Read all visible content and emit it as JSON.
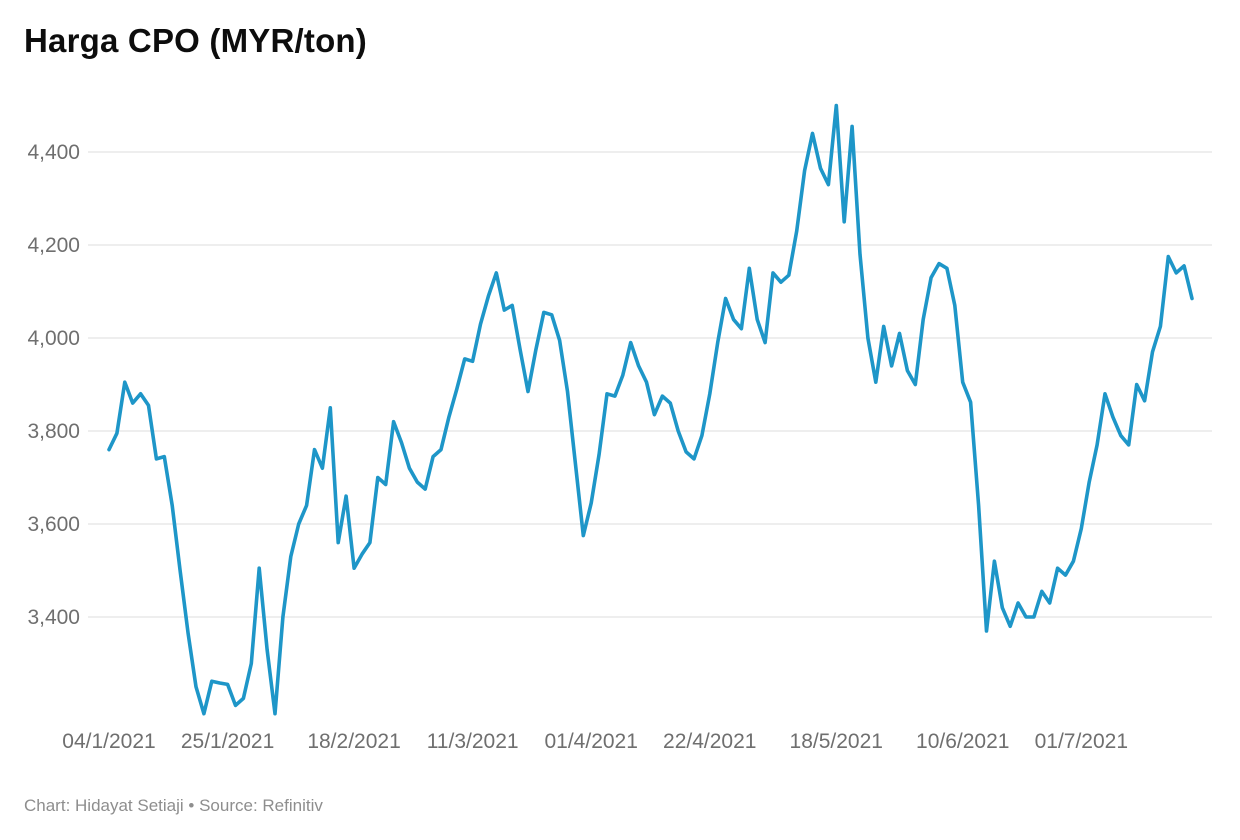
{
  "header": {
    "title": "Harga CPO (MYR/ton)"
  },
  "footer": {
    "text": "Chart: Hidayat Setiaji • Source: Refinitiv"
  },
  "chart_data": {
    "type": "line",
    "title": "Harga CPO (MYR/ton)",
    "xlabel": "",
    "ylabel": "MYR/ton",
    "series_name": "Harga CPO",
    "line_color": "#1e96c8",
    "grid_color": "#dcdcdc",
    "axis_text_color": "#6f6f6f",
    "background_color": "#ffffff",
    "legend": "none",
    "grid": "horizontal-only",
    "ylim": [
      3160,
      4515
    ],
    "y_ticks": [
      {
        "value": 4400,
        "label": "4,400"
      },
      {
        "value": 4200,
        "label": "4,200"
      },
      {
        "value": 4000,
        "label": "4,000"
      },
      {
        "value": 3800,
        "label": "3,800"
      },
      {
        "value": 3600,
        "label": "3,600"
      },
      {
        "value": 3400,
        "label": "3,400"
      }
    ],
    "x_ticks": [
      {
        "index": 0,
        "label": "04/1/2021"
      },
      {
        "index": 15,
        "label": "25/1/2021"
      },
      {
        "index": 31,
        "label": "18/2/2021"
      },
      {
        "index": 46,
        "label": "11/3/2021"
      },
      {
        "index": 61,
        "label": "01/4/2021"
      },
      {
        "index": 76,
        "label": "22/4/2021"
      },
      {
        "index": 92,
        "label": "18/5/2021"
      },
      {
        "index": 108,
        "label": "10/6/2021"
      },
      {
        "index": 123,
        "label": "01/7/2021"
      }
    ],
    "x": [
      "04/1/2021",
      "05/1/2021",
      "06/1/2021",
      "07/1/2021",
      "08/1/2021",
      "11/1/2021",
      "12/1/2021",
      "13/1/2021",
      "14/1/2021",
      "15/1/2021",
      "18/1/2021",
      "19/1/2021",
      "20/1/2021",
      "21/1/2021",
      "22/1/2021",
      "25/1/2021",
      "26/1/2021",
      "27/1/2021",
      "28/1/2021",
      "29/1/2021",
      "01/2/2021",
      "02/2/2021",
      "03/2/2021",
      "04/2/2021",
      "05/2/2021",
      "08/2/2021",
      "09/2/2021",
      "10/2/2021",
      "15/2/2021",
      "16/2/2021",
      "17/2/2021",
      "18/2/2021",
      "19/2/2021",
      "22/2/2021",
      "23/2/2021",
      "24/2/2021",
      "25/2/2021",
      "26/2/2021",
      "01/3/2021",
      "02/3/2021",
      "03/3/2021",
      "04/3/2021",
      "05/3/2021",
      "08/3/2021",
      "09/3/2021",
      "10/3/2021",
      "11/3/2021",
      "12/3/2021",
      "15/3/2021",
      "16/3/2021",
      "17/3/2021",
      "18/3/2021",
      "19/3/2021",
      "22/3/2021",
      "23/3/2021",
      "24/3/2021",
      "25/3/2021",
      "26/3/2021",
      "29/3/2021",
      "30/3/2021",
      "31/3/2021",
      "01/4/2021",
      "02/4/2021",
      "05/4/2021",
      "06/4/2021",
      "07/4/2021",
      "08/4/2021",
      "09/4/2021",
      "12/4/2021",
      "13/4/2021",
      "14/4/2021",
      "15/4/2021",
      "16/4/2021",
      "19/4/2021",
      "20/4/2021",
      "21/4/2021",
      "22/4/2021",
      "23/4/2021",
      "26/4/2021",
      "27/4/2021",
      "28/4/2021",
      "29/4/2021",
      "30/4/2021",
      "03/5/2021",
      "04/5/2021",
      "05/5/2021",
      "06/5/2021",
      "07/5/2021",
      "10/5/2021",
      "11/5/2021",
      "12/5/2021",
      "17/5/2021",
      "18/5/2021",
      "19/5/2021",
      "20/5/2021",
      "21/5/2021",
      "24/5/2021",
      "25/5/2021",
      "27/5/2021",
      "28/5/2021",
      "31/5/2021",
      "01/6/2021",
      "02/6/2021",
      "03/6/2021",
      "04/6/2021",
      "07/6/2021",
      "08/6/2021",
      "09/6/2021",
      "10/6/2021",
      "11/6/2021",
      "14/6/2021",
      "15/6/2021",
      "16/6/2021",
      "17/6/2021",
      "18/6/2021",
      "21/6/2021",
      "22/6/2021",
      "23/6/2021",
      "24/6/2021",
      "25/6/2021",
      "28/6/2021",
      "29/6/2021",
      "30/6/2021",
      "01/7/2021",
      "02/7/2021",
      "05/7/2021",
      "06/7/2021",
      "07/7/2021",
      "08/7/2021",
      "09/7/2021",
      "12/7/2021",
      "13/7/2021",
      "14/7/2021",
      "15/7/2021",
      "16/7/2021",
      "19/7/2021",
      "20/7/2021",
      "21/7/2021"
    ],
    "values": [
      3760,
      3795,
      3905,
      3860,
      3880,
      3855,
      3740,
      3745,
      3640,
      3500,
      3365,
      3250,
      3192,
      3262,
      3258,
      3255,
      3210,
      3225,
      3300,
      3505,
      3330,
      3192,
      3400,
      3530,
      3600,
      3640,
      3760,
      3720,
      3850,
      3560,
      3660,
      3505,
      3535,
      3560,
      3700,
      3685,
      3820,
      3775,
      3720,
      3690,
      3675,
      3745,
      3760,
      3830,
      3890,
      3955,
      3950,
      4030,
      4090,
      4140,
      4060,
      4070,
      3975,
      3885,
      3975,
      4055,
      4050,
      3995,
      3885,
      3730,
      3575,
      3645,
      3750,
      3880,
      3875,
      3920,
      3990,
      3940,
      3905,
      3835,
      3875,
      3860,
      3800,
      3755,
      3740,
      3790,
      3880,
      3990,
      4085,
      4040,
      4020,
      4150,
      4040,
      3990,
      4140,
      4120,
      4135,
      4230,
      4360,
      4440,
      4365,
      4330,
      4500,
      4250,
      4455,
      4180,
      4000,
      3905,
      4025,
      3940,
      4010,
      3930,
      3900,
      4040,
      4130,
      4160,
      4150,
      4070,
      3905,
      3862,
      3640,
      3370,
      3520,
      3420,
      3380,
      3430,
      3400,
      3400,
      3455,
      3430,
      3505,
      3490,
      3520,
      3590,
      3690,
      3770,
      3880,
      3830,
      3790,
      3770,
      3900,
      3865,
      3970,
      4025,
      4175,
      4140,
      4155,
      4085
    ]
  }
}
